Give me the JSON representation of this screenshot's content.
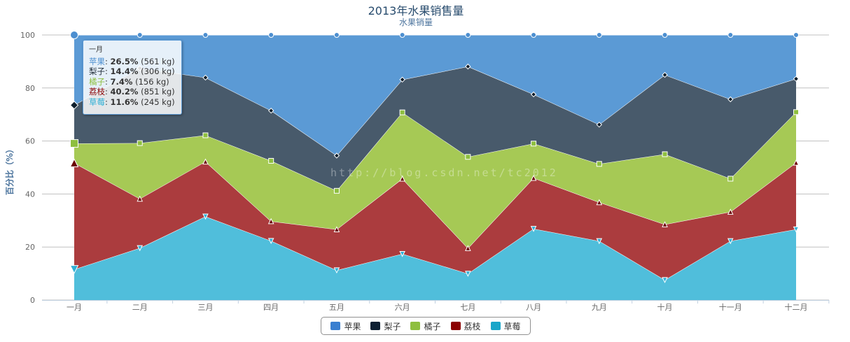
{
  "chart_data": {
    "type": "area",
    "stacking": "percent",
    "title": "2013年水果销售量",
    "subtitle": "水果销量",
    "ylabel": "百分比（%）",
    "xlabel": "",
    "ylim": [
      0,
      100
    ],
    "yticks": [
      0,
      20,
      40,
      60,
      80,
      100
    ],
    "grid": true,
    "legend_position": "bottom-center",
    "categories": [
      "一月",
      "二月",
      "三月",
      "四月",
      "五月",
      "六月",
      "七月",
      "八月",
      "九月",
      "十月",
      "十一月",
      "十二月"
    ],
    "series": [
      {
        "name": "苹果",
        "color": "#5b9ad5",
        "line": "#4d8fd0",
        "marker": "circle",
        "values": [
          561,
          155,
          178,
          294,
          466,
          177,
          123,
          226,
          322,
          153,
          254,
          150
        ]
      },
      {
        "name": "梨子",
        "color": "#485a6b",
        "line": "#3b4d5e",
        "marker": "diamond",
        "values": [
          306,
          350,
          241,
          195,
          136,
          130,
          352,
          187,
          141,
          304,
          313,
          114
        ]
      },
      {
        "name": "橘子",
        "color": "#a6c955",
        "line": "#8ebf3f",
        "marker": "square",
        "values": [
          156,
          260,
          110,
          235,
          149,
          263,
          356,
          131,
          138,
          269,
          131,
          173
        ]
      },
      {
        "name": "荔枝",
        "color": "#ab3c3e",
        "line": "#9b2d30",
        "marker": "triangle",
        "values": [
          851,
          230,
          229,
          76,
          158,
          298,
          99,
          193,
          139,
          213,
          115,
          228
        ]
      },
      {
        "name": "草莓",
        "color": "#50bedb",
        "line": "#2fb0d6",
        "marker": "triangle-down",
        "values": [
          245,
          243,
          349,
          230,
          115,
          183,
          103,
          271,
          212,
          77,
          233,
          242
        ]
      }
    ]
  },
  "tooltip": {
    "header": "一月",
    "rows": [
      {
        "name": "苹果",
        "color": "#4d8fd0",
        "pct": "26.5%",
        "abs": "(561 kg)"
      },
      {
        "name": "梨子",
        "color": "#1e2a36",
        "pct": "14.4%",
        "abs": "(306 kg)"
      },
      {
        "name": "橘子",
        "color": "#8ebf3f",
        "pct": "7.4%",
        "abs": "(156 kg)"
      },
      {
        "name": "荔枝",
        "color": "#8b0000",
        "pct": "40.2%",
        "abs": "(851 kg)"
      },
      {
        "name": "草莓",
        "color": "#2fb0d6",
        "pct": "11.6%",
        "abs": "(245 kg)"
      }
    ]
  },
  "legend": {
    "items": [
      {
        "name": "苹果",
        "color": "#3a7fd0"
      },
      {
        "name": "梨子",
        "color": "#0e2033"
      },
      {
        "name": "橘子",
        "color": "#8ebf3f"
      },
      {
        "name": "荔枝",
        "color": "#8b0000"
      },
      {
        "name": "草莓",
        "color": "#1aa6c9"
      }
    ]
  },
  "watermark": "http://blog.csdn.net/tc2012"
}
